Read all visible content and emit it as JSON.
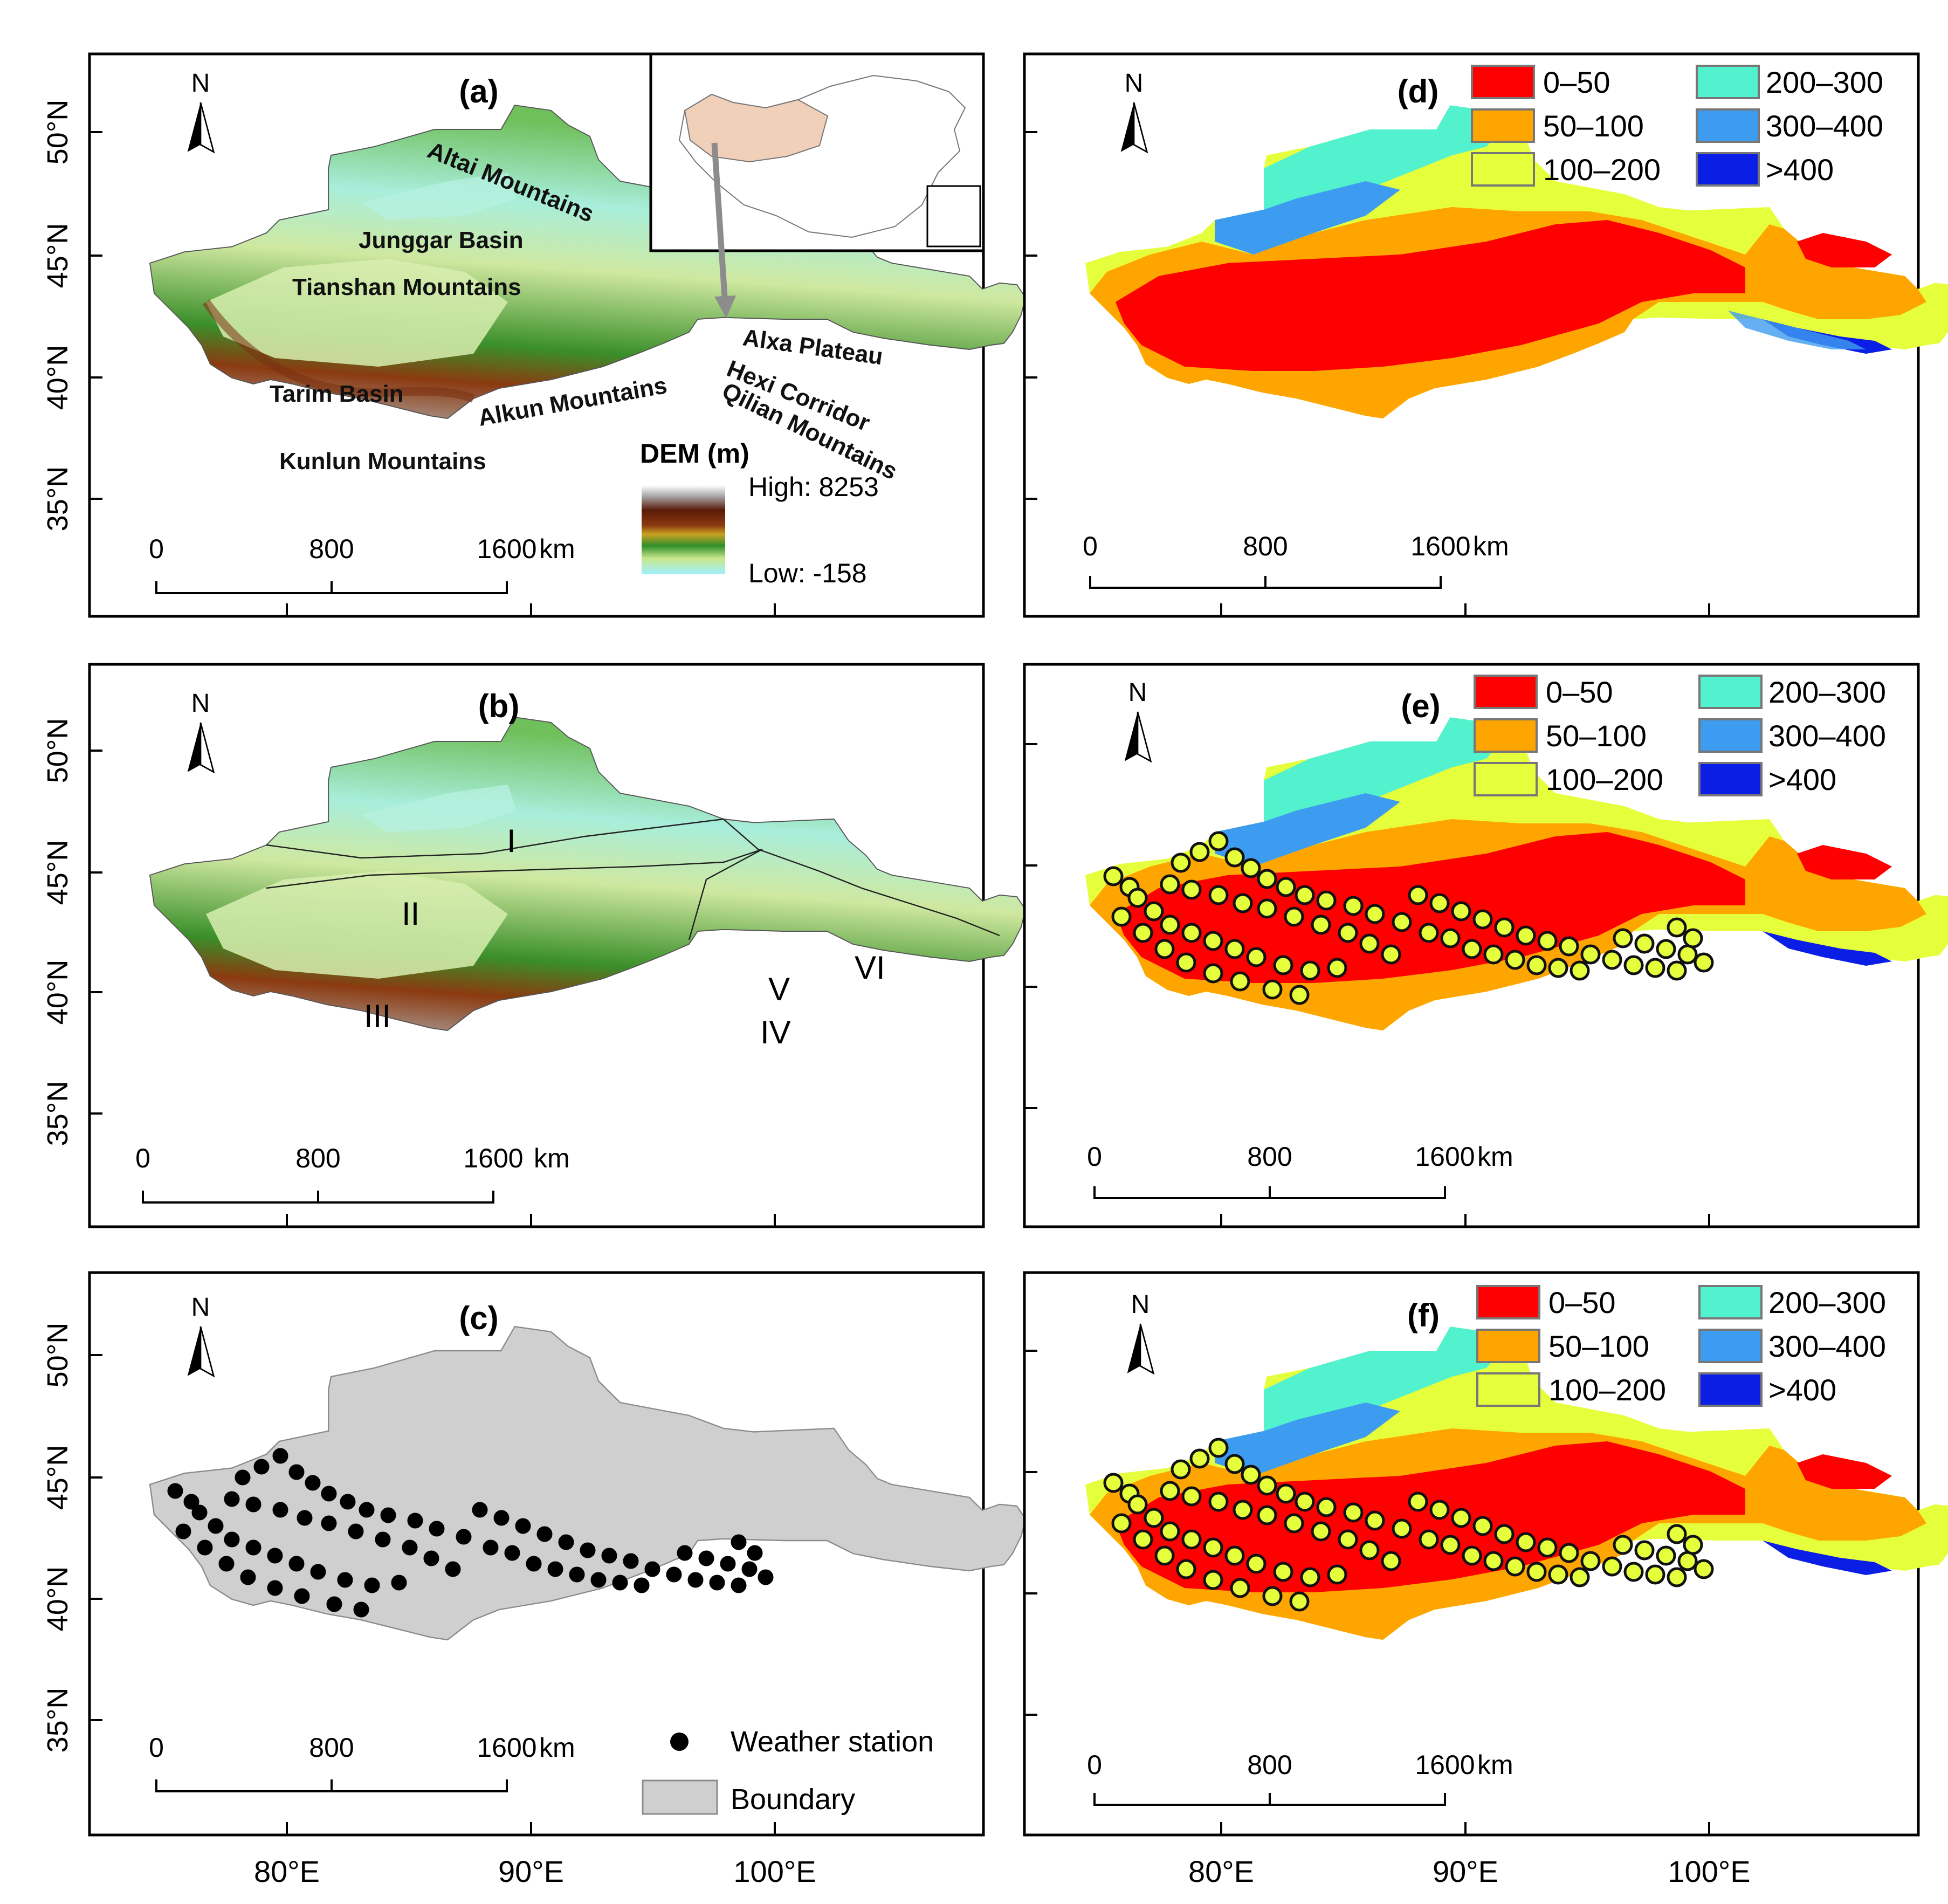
{
  "panels": {
    "a": {
      "label": "(a)"
    },
    "b": {
      "label": "(b)"
    },
    "c": {
      "label": "(c)"
    },
    "d": {
      "label": "(d)"
    },
    "e": {
      "label": "(e)"
    },
    "f": {
      "label": "(f)"
    }
  },
  "north_label": "N",
  "lat_labels": [
    "50°N",
    "45°N",
    "40°N",
    "35°N"
  ],
  "lon_labels": [
    "80°E",
    "90°E",
    "100°E"
  ],
  "scale_labels": [
    "0",
    "800",
    "1600",
    "km"
  ],
  "panel_a": {
    "place_names": [
      "Altai Mountains",
      "Junggar Basin",
      "Tianshan Mountains",
      "Alxa Plateau",
      "Tarim Basin",
      "Alkun Mountains",
      "Hexi Corridor",
      "Qilian Mountains",
      "Kunlun Mountains"
    ],
    "dem_title": "DEM (m)",
    "dem_high": "High: 8253",
    "dem_low": "Low: -158"
  },
  "panel_b": {
    "regions": [
      "I",
      "II",
      "III",
      "IV",
      "V",
      "VI"
    ]
  },
  "panel_c": {
    "legend_station": "Weather station",
    "legend_boundary": "Boundary"
  },
  "class_legend": [
    {
      "label": "0–50",
      "color": "#ff0000"
    },
    {
      "label": "50–100",
      "color": "#ffa500"
    },
    {
      "label": "100–200",
      "color": "#e6ff3c"
    },
    {
      "label": "200–300",
      "color": "#52f2cf"
    },
    {
      "label": "300–400",
      "color": "#3e9cf0"
    },
    {
      "label": ">400",
      "color": "#0a1ee6"
    }
  ],
  "colors": {
    "boundary_fill": "#cfcfcf",
    "station": "#000000",
    "arrow": "#8c8c8c"
  }
}
